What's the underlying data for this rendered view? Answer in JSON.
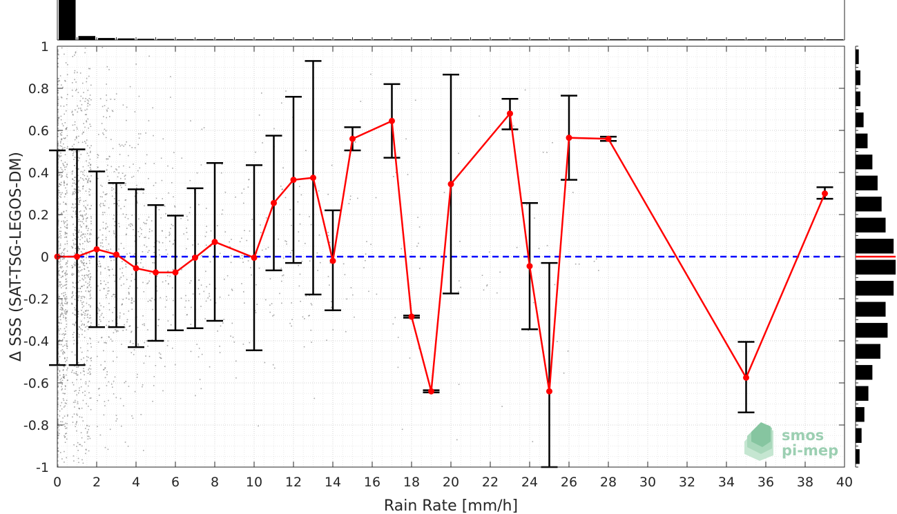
{
  "chart_data": {
    "type": "scatter",
    "xlabel": "Rain Rate [mm/h]",
    "ylabel": "Δ SSS (SAT-TSG-LEGOS-DM)",
    "xlim": [
      0,
      40
    ],
    "ylim": [
      -1,
      1
    ],
    "x_ticks": [
      "0",
      "2",
      "4",
      "6",
      "8",
      "10",
      "12",
      "14",
      "16",
      "18",
      "20",
      "22",
      "24",
      "26",
      "28",
      "30",
      "32",
      "34",
      "36",
      "38",
      "40"
    ],
    "y_ticks": [
      "-1",
      "-0.8",
      "-0.6",
      "-0.4",
      "-0.2",
      "0",
      "0.2",
      "0.4",
      "0.6",
      "0.8",
      "1"
    ],
    "grid": true,
    "reference_line": {
      "y": 0,
      "style": "dashed",
      "color": "#0000ff"
    },
    "series": [
      {
        "type": "line-errorbar",
        "color": "#ff0000",
        "errorbar_color": "#000000",
        "points": [
          {
            "x": 0,
            "y": 0.0,
            "lo": -0.515,
            "hi": 0.505
          },
          {
            "x": 1,
            "y": 0.0,
            "lo": -0.515,
            "hi": 0.51
          },
          {
            "x": 2,
            "y": 0.035,
            "lo": -0.335,
            "hi": 0.405
          },
          {
            "x": 3,
            "y": 0.01,
            "lo": -0.335,
            "hi": 0.35
          },
          {
            "x": 4,
            "y": -0.055,
            "lo": -0.43,
            "hi": 0.32
          },
          {
            "x": 5,
            "y": -0.075,
            "lo": -0.4,
            "hi": 0.245
          },
          {
            "x": 6,
            "y": -0.075,
            "lo": -0.35,
            "hi": 0.195
          },
          {
            "x": 7,
            "y": -0.005,
            "lo": -0.34,
            "hi": 0.325
          },
          {
            "x": 8,
            "y": 0.07,
            "lo": -0.305,
            "hi": 0.445
          },
          {
            "x": 10,
            "y": -0.005,
            "lo": -0.445,
            "hi": 0.435
          },
          {
            "x": 11,
            "y": 0.255,
            "lo": -0.065,
            "hi": 0.575
          },
          {
            "x": 12,
            "y": 0.365,
            "lo": -0.03,
            "hi": 0.76
          },
          {
            "x": 13,
            "y": 0.375,
            "lo": -0.18,
            "hi": 0.93
          },
          {
            "x": 14,
            "y": -0.02,
            "lo": -0.255,
            "hi": 0.22
          },
          {
            "x": 15,
            "y": 0.56,
            "lo": 0.505,
            "hi": 0.615
          },
          {
            "x": 17,
            "y": 0.645,
            "lo": 0.47,
            "hi": 0.82
          },
          {
            "x": 18,
            "y": -0.285,
            "lo": -0.29,
            "hi": -0.28
          },
          {
            "x": 19,
            "y": -0.64,
            "lo": -0.645,
            "hi": -0.635
          },
          {
            "x": 20,
            "y": 0.345,
            "lo": -0.175,
            "hi": 0.865
          },
          {
            "x": 23,
            "y": 0.68,
            "lo": 0.605,
            "hi": 0.75
          },
          {
            "x": 24,
            "y": -0.045,
            "lo": -0.345,
            "hi": 0.255
          },
          {
            "x": 25,
            "y": -0.64,
            "lo": -1.0,
            "hi": -0.03
          },
          {
            "x": 26,
            "y": 0.565,
            "lo": 0.365,
            "hi": 0.765
          },
          {
            "x": 28,
            "y": 0.56,
            "lo": 0.55,
            "hi": 0.57
          },
          {
            "x": 35,
            "y": -0.575,
            "lo": -0.74,
            "hi": -0.405
          },
          {
            "x": 39,
            "y": 0.3,
            "lo": 0.275,
            "hi": 0.33
          }
        ]
      }
    ],
    "scatter_background": {
      "color": "#808080",
      "description_visible": false
    },
    "top_histogram": {
      "bins": [
        0,
        1,
        2,
        3,
        4,
        5,
        6,
        7,
        8,
        9,
        10,
        11,
        12,
        13,
        14,
        15,
        16,
        17,
        18,
        19,
        20,
        21,
        22,
        23,
        24,
        25,
        26,
        27,
        28,
        29,
        30,
        31,
        32,
        33,
        34,
        35,
        36,
        37,
        38,
        39
      ],
      "relative_counts": [
        1.0,
        0.1,
        0.05,
        0.04,
        0.03,
        0.025,
        0.02,
        0.02,
        0.02,
        0.015,
        0.015,
        0.015,
        0.015,
        0.015,
        0.015,
        0.012,
        0.012,
        0.012,
        0.01,
        0.01,
        0.01,
        0.01,
        0.01,
        0.01,
        0.01,
        0.01,
        0.01,
        0.01,
        0.02,
        0.005,
        0.005,
        0.005,
        0.005,
        0.005,
        0.005,
        0.01,
        0.005,
        0.005,
        0.005,
        0.01
      ]
    },
    "right_histogram": {
      "bin_centers": [
        0.95,
        0.85,
        0.75,
        0.65,
        0.55,
        0.45,
        0.35,
        0.25,
        0.15,
        0.05,
        -0.05,
        -0.15,
        -0.25,
        -0.35,
        -0.45,
        -0.55,
        -0.65,
        -0.75,
        -0.85,
        -0.95
      ],
      "relative_counts": [
        0.08,
        0.12,
        0.12,
        0.2,
        0.3,
        0.42,
        0.55,
        0.65,
        0.75,
        0.95,
        1.0,
        0.95,
        0.75,
        0.8,
        0.62,
        0.42,
        0.32,
        0.22,
        0.15,
        0.1
      ],
      "median_marker": {
        "y": 0,
        "color": "#ff0000"
      }
    }
  },
  "logo": {
    "line1": "smos",
    "line2": "pi-mep",
    "color": "#9ccfb2"
  }
}
